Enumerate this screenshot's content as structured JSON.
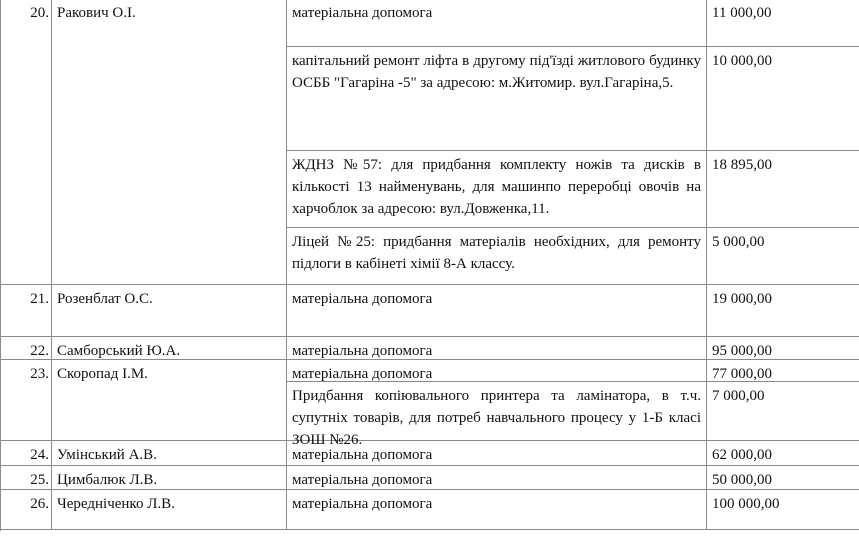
{
  "rows": [
    {
      "num": "20.",
      "name": "Ракович О.І.",
      "items": [
        {
          "desc": "матеріальна допомога",
          "amount": "11 000,00"
        },
        {
          "desc": "капітальний ремонт ліфта в другому під'їзді житлового будинку ОСББ \"Гагаріна -5\" за адресою: м.Житомир. вул.Гагаріна,5.",
          "amount": "10 000,00"
        },
        {
          "desc": "ЖДНЗ №57: для придбання комплекту ножів та дисків в кількості 13 найменувань, для машинпо переробці овочів на харчоблок за адресою: вул.Довженка,11.",
          "amount": "18 895,00"
        },
        {
          "desc": "Ліцей №25: придбання матеріалів необхідних, для ремонту підлоги в кабінеті хімії 8-А классу.",
          "amount": "5 000,00"
        }
      ]
    },
    {
      "num": "21.",
      "name": "Розенблат О.С.",
      "items": [
        {
          "desc": "матеріальна допомога",
          "amount": "19 000,00"
        }
      ]
    },
    {
      "num": "22.",
      "name": "Самборський Ю.А.",
      "items": [
        {
          "desc": "матеріальна допомога",
          "amount": "95 000,00"
        }
      ]
    },
    {
      "num": "23.",
      "name": "Скоропад І.М.",
      "items": [
        {
          "desc": "матеріальна допомога",
          "amount": "77 000,00"
        },
        {
          "desc": "Придбання копіювального принтера та ламінатора, в т.ч. супутніх товарів, для потреб навчального процесу у 1-Б класі ЗОШ №26.",
          "amount": "7 000,00"
        }
      ]
    },
    {
      "num": "24.",
      "name": "Умінський А.В.",
      "items": [
        {
          "desc": "матеріальна допомога",
          "amount": "62 000,00"
        }
      ]
    },
    {
      "num": "25.",
      "name": "Цимбалюк Л.В.",
      "items": [
        {
          "desc": "матеріальна допомога",
          "amount": "50 000,00"
        }
      ]
    },
    {
      "num": "26.",
      "name": "Чередніченко Л.В.",
      "items": [
        {
          "desc": "матеріальна допомога",
          "amount": "100 000,00"
        }
      ]
    }
  ]
}
